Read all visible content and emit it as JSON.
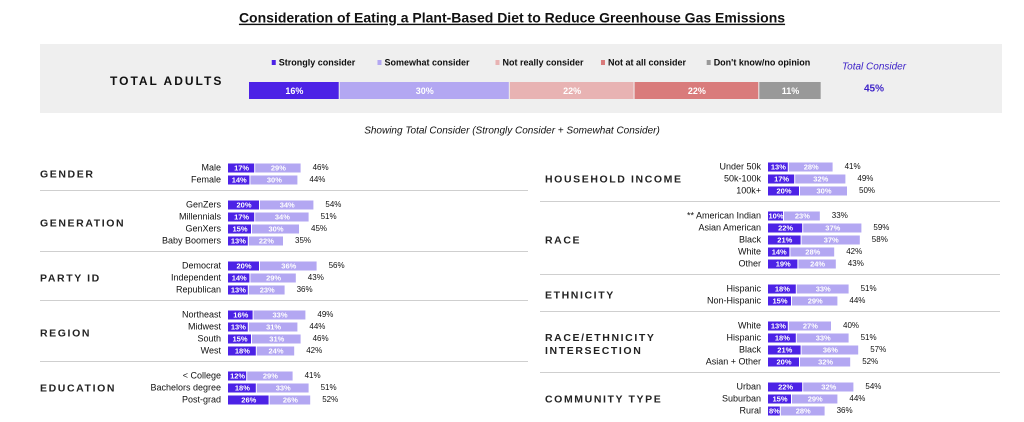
{
  "chart_data": {
    "type": "bar",
    "title": "Consideration of Eating a Plant-Based Diet to Reduce Greenhouse Gas Emissions",
    "subtitle": "Showing Total Consider (Strongly Consider + Somewhat Consider)",
    "total": {
      "label": "TOTAL ADULTS",
      "series": [
        {
          "name": "Strongly consider",
          "color": "#4c22e6",
          "value": 16,
          "value_label": "16%"
        },
        {
          "name": "Somewhat consider",
          "color": "#b3a7f2",
          "value": 30,
          "value_label": "30%"
        },
        {
          "name": "Not really consider",
          "color": "#e8b3b3",
          "value": 22,
          "value_label": "22%"
        },
        {
          "name": "Not at all consider",
          "color": "#d97b7b",
          "value": 22,
          "value_label": "22%"
        },
        {
          "name": "Don't know/no opinion",
          "color": "#999999",
          "value": 11,
          "value_label": "11%"
        }
      ],
      "consider_name": "Total Consider",
      "consider_value": 45,
      "consider_label": "45%"
    },
    "columns": [
      {
        "groups": [
          {
            "name": "GENDER",
            "rows": [
              {
                "category": "Male",
                "values": [
                  17,
                  29,
                  46
                ],
                "value_labels": [
                  "17%",
                  "29%",
                  "46%"
                ]
              },
              {
                "category": "Female",
                "values": [
                  14,
                  30,
                  44
                ],
                "value_labels": [
                  "14%",
                  "30%",
                  "44%"
                ]
              }
            ]
          },
          {
            "name": "GENERATION",
            "rows": [
              {
                "category": "GenZers",
                "values": [
                  20,
                  34,
                  54
                ],
                "value_labels": [
                  "20%",
                  "34%",
                  "54%"
                ]
              },
              {
                "category": "Millennials",
                "values": [
                  17,
                  34,
                  51
                ],
                "value_labels": [
                  "17%",
                  "34%",
                  "51%"
                ]
              },
              {
                "category": "GenXers",
                "values": [
                  15,
                  30,
                  45
                ],
                "value_labels": [
                  "15%",
                  "30%",
                  "45%"
                ]
              },
              {
                "category": "Baby Boomers",
                "values": [
                  13,
                  22,
                  35
                ],
                "value_labels": [
                  "13%",
                  "22%",
                  "35%"
                ]
              }
            ]
          },
          {
            "name": "PARTY ID",
            "rows": [
              {
                "category": "Democrat",
                "values": [
                  20,
                  36,
                  56
                ],
                "value_labels": [
                  "20%",
                  "36%",
                  "56%"
                ]
              },
              {
                "category": "Independent",
                "values": [
                  14,
                  29,
                  43
                ],
                "value_labels": [
                  "14%",
                  "29%",
                  "43%"
                ]
              },
              {
                "category": "Republican",
                "values": [
                  13,
                  23,
                  36
                ],
                "value_labels": [
                  "13%",
                  "23%",
                  "36%"
                ]
              }
            ]
          },
          {
            "name": "REGION",
            "rows": [
              {
                "category": "Northeast",
                "values": [
                  16,
                  33,
                  49
                ],
                "value_labels": [
                  "16%",
                  "33%",
                  "49%"
                ]
              },
              {
                "category": "Midwest",
                "values": [
                  13,
                  31,
                  44
                ],
                "value_labels": [
                  "13%",
                  "31%",
                  "44%"
                ]
              },
              {
                "category": "South",
                "values": [
                  15,
                  31,
                  46
                ],
                "value_labels": [
                  "15%",
                  "31%",
                  "46%"
                ]
              },
              {
                "category": "West",
                "values": [
                  18,
                  24,
                  42
                ],
                "value_labels": [
                  "18%",
                  "24%",
                  "42%"
                ]
              }
            ]
          },
          {
            "name": "EDUCATION",
            "rows": [
              {
                "category": "< College",
                "values": [
                  12,
                  29,
                  41
                ],
                "value_labels": [
                  "12%",
                  "29%",
                  "41%"
                ]
              },
              {
                "category": "Bachelors degree",
                "values": [
                  18,
                  33,
                  51
                ],
                "value_labels": [
                  "18%",
                  "33%",
                  "51%"
                ]
              },
              {
                "category": "Post-grad",
                "values": [
                  26,
                  26,
                  52
                ],
                "value_labels": [
                  "26%",
                  "26%",
                  "52%"
                ]
              }
            ]
          }
        ]
      },
      {
        "groups": [
          {
            "name": "HOUSEHOLD INCOME",
            "rows": [
              {
                "category": "Under 50k",
                "values": [
                  13,
                  28,
                  41
                ],
                "value_labels": [
                  "13%",
                  "28%",
                  "41%"
                ]
              },
              {
                "category": "50k-100k",
                "values": [
                  17,
                  32,
                  49
                ],
                "value_labels": [
                  "17%",
                  "32%",
                  "49%"
                ]
              },
              {
                "category": "100k+",
                "values": [
                  20,
                  30,
                  50
                ],
                "value_labels": [
                  "20%",
                  "30%",
                  "50%"
                ]
              }
            ]
          },
          {
            "name": "RACE",
            "rows": [
              {
                "category": "** American Indian",
                "values": [
                  10,
                  23,
                  33
                ],
                "value_labels": [
                  "10%",
                  "23%",
                  "33%"
                ]
              },
              {
                "category": "Asian American",
                "values": [
                  22,
                  37,
                  59
                ],
                "value_labels": [
                  "22%",
                  "37%",
                  "59%"
                ]
              },
              {
                "category": "Black",
                "values": [
                  21,
                  37,
                  58
                ],
                "value_labels": [
                  "21%",
                  "37%",
                  "58%"
                ]
              },
              {
                "category": "White",
                "values": [
                  14,
                  28,
                  42
                ],
                "value_labels": [
                  "14%",
                  "28%",
                  "42%"
                ]
              },
              {
                "category": "Other",
                "values": [
                  19,
                  24,
                  43
                ],
                "value_labels": [
                  "19%",
                  "24%",
                  "43%"
                ]
              }
            ]
          },
          {
            "name": "ETHNICITY",
            "rows": [
              {
                "category": "Hispanic",
                "values": [
                  18,
                  33,
                  51
                ],
                "value_labels": [
                  "18%",
                  "33%",
                  "51%"
                ]
              },
              {
                "category": "Non-Hispanic",
                "values": [
                  15,
                  29,
                  44
                ],
                "value_labels": [
                  "15%",
                  "29%",
                  "44%"
                ]
              }
            ]
          },
          {
            "name": "RACE/ETHNICITY INTERSECTION",
            "rows": [
              {
                "category": "White",
                "values": [
                  13,
                  27,
                  40
                ],
                "value_labels": [
                  "13%",
                  "27%",
                  "40%"
                ]
              },
              {
                "category": "Hispanic",
                "values": [
                  18,
                  33,
                  51
                ],
                "value_labels": [
                  "18%",
                  "33%",
                  "51%"
                ]
              },
              {
                "category": "Black",
                "values": [
                  21,
                  36,
                  57
                ],
                "value_labels": [
                  "21%",
                  "36%",
                  "57%"
                ]
              },
              {
                "category": "Asian + Other",
                "values": [
                  20,
                  32,
                  52
                ],
                "value_labels": [
                  "20%",
                  "32%",
                  "52%"
                ]
              }
            ]
          },
          {
            "name": "COMMUNITY TYPE",
            "rows": [
              {
                "category": "Urban",
                "values": [
                  22,
                  32,
                  54
                ],
                "value_labels": [
                  "22%",
                  "32%",
                  "54%"
                ]
              },
              {
                "category": "Suburban",
                "values": [
                  15,
                  29,
                  44
                ],
                "value_labels": [
                  "15%",
                  "29%",
                  "44%"
                ]
              },
              {
                "category": "Rural",
                "values": [
                  8,
                  28,
                  36
                ],
                "value_labels": [
                  "8%",
                  "28%",
                  "36%"
                ]
              }
            ]
          }
        ]
      }
    ]
  }
}
